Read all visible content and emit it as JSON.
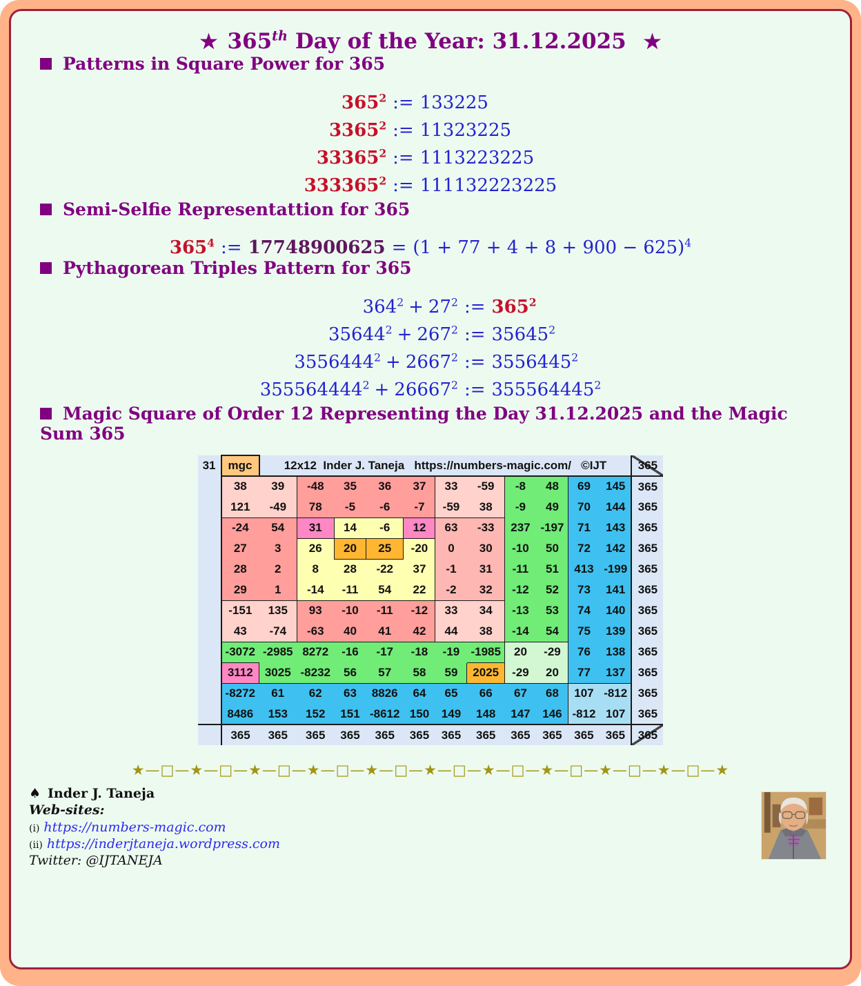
{
  "title": {
    "star_left": "★",
    "number": "365",
    "ordinal": "th",
    "rest": "Day of the Year: 31.12.2025",
    "star_right": "★"
  },
  "symbols": {
    "assign": ":=",
    "plus": "+",
    "equals": "="
  },
  "square_power": {
    "heading": "Patterns in Square Power for 365",
    "equations": [
      {
        "base": "365",
        "exp": "2",
        "result": "133225"
      },
      {
        "base": "3365",
        "exp": "2",
        "result": "11323225"
      },
      {
        "base": "33365",
        "exp": "2",
        "result": "1113223225"
      },
      {
        "base": "333365",
        "exp": "2",
        "result": "111132223225"
      }
    ]
  },
  "semi_selfie": {
    "heading": "Semi-Selfie Representattion for 365",
    "base": "365",
    "exp": "4",
    "value": "17748900625",
    "rhs": "(1 + 77 + 4 + 8 + 900 − 625)",
    "rhs_exp": "4"
  },
  "pythagorean": {
    "heading": "Pythagorean Triples Pattern for 365",
    "equations": [
      {
        "a": "364",
        "b": "27",
        "c": "365",
        "exp": "2"
      },
      {
        "a": "35644",
        "b": "267",
        "c": "35645",
        "exp": "2"
      },
      {
        "a": "3556444",
        "b": "2667",
        "c": "3556445",
        "exp": "2"
      },
      {
        "a": "355564444",
        "b": "26667",
        "c": "355564445",
        "exp": "2"
      }
    ]
  },
  "magic_square": {
    "heading": "Magic Square of Order 12 Representing the Day 31.12.2025 and the Magic Sum 365",
    "corner_label": "31",
    "mgc_label": "mgc",
    "header_text": "12x12  Inder J. Taneja   https://numbers-magic.com/   ©IJT",
    "header_total": "365",
    "palette": {
      "pk": "#ffd2cc",
      "mp": "#ffb7b3",
      "sa": "#ff9e9b",
      "hp": "#ff87c3",
      "ye": "#ffffb2",
      "or": "#ffb732",
      "gr": "#70ec77",
      "pg": "#d3f6d3",
      "bl": "#3ec1f0",
      "lb": "#a8def4",
      "lv": "#dbe7f6"
    },
    "rows": [
      {
        "cells": [
          {
            "v": "38",
            "c": "pk"
          },
          {
            "v": "39",
            "c": "pk"
          },
          {
            "v": "-48",
            "c": "sa"
          },
          {
            "v": "35",
            "c": "sa"
          },
          {
            "v": "36",
            "c": "sa"
          },
          {
            "v": "37",
            "c": "sa"
          },
          {
            "v": "33",
            "c": "pk"
          },
          {
            "v": "-59",
            "c": "pk"
          },
          {
            "v": "-8",
            "c": "gr"
          },
          {
            "v": "48",
            "c": "gr"
          },
          {
            "v": "69",
            "c": "bl"
          },
          {
            "v": "145",
            "c": "bl"
          }
        ]
      },
      {
        "cells": [
          {
            "v": "121",
            "c": "pk"
          },
          {
            "v": "-49",
            "c": "pk"
          },
          {
            "v": "78",
            "c": "sa"
          },
          {
            "v": "-5",
            "c": "sa"
          },
          {
            "v": "-6",
            "c": "sa"
          },
          {
            "v": "-7",
            "c": "sa"
          },
          {
            "v": "-59",
            "c": "pk"
          },
          {
            "v": "38",
            "c": "pk"
          },
          {
            "v": "-9",
            "c": "gr"
          },
          {
            "v": "49",
            "c": "gr"
          },
          {
            "v": "70",
            "c": "bl"
          },
          {
            "v": "144",
            "c": "bl"
          }
        ]
      },
      {
        "cells": [
          {
            "v": "-24",
            "c": "sa"
          },
          {
            "v": "54",
            "c": "sa"
          },
          {
            "v": "31",
            "c": "hp"
          },
          {
            "v": "14",
            "c": "ye"
          },
          {
            "v": "-6",
            "c": "ye"
          },
          {
            "v": "12",
            "c": "hp"
          },
          {
            "v": "63",
            "c": "mp"
          },
          {
            "v": "-33",
            "c": "mp"
          },
          {
            "v": "237",
            "c": "gr"
          },
          {
            "v": "-197",
            "c": "gr"
          },
          {
            "v": "71",
            "c": "bl"
          },
          {
            "v": "143",
            "c": "bl"
          }
        ]
      },
      {
        "cells": [
          {
            "v": "27",
            "c": "sa"
          },
          {
            "v": "3",
            "c": "sa"
          },
          {
            "v": "26",
            "c": "ye"
          },
          {
            "v": "20",
            "c": "or"
          },
          {
            "v": "25",
            "c": "or"
          },
          {
            "v": "-20",
            "c": "ye"
          },
          {
            "v": "0",
            "c": "mp"
          },
          {
            "v": "30",
            "c": "mp"
          },
          {
            "v": "-10",
            "c": "gr"
          },
          {
            "v": "50",
            "c": "gr"
          },
          {
            "v": "72",
            "c": "bl"
          },
          {
            "v": "142",
            "c": "bl"
          }
        ]
      },
      {
        "cells": [
          {
            "v": "28",
            "c": "sa"
          },
          {
            "v": "2",
            "c": "sa"
          },
          {
            "v": "8",
            "c": "ye"
          },
          {
            "v": "28",
            "c": "ye"
          },
          {
            "v": "-22",
            "c": "ye"
          },
          {
            "v": "37",
            "c": "ye"
          },
          {
            "v": "-1",
            "c": "mp"
          },
          {
            "v": "31",
            "c": "mp"
          },
          {
            "v": "-11",
            "c": "gr"
          },
          {
            "v": "51",
            "c": "gr"
          },
          {
            "v": "413",
            "c": "bl"
          },
          {
            "v": "-199",
            "c": "bl"
          }
        ]
      },
      {
        "cells": [
          {
            "v": "29",
            "c": "sa"
          },
          {
            "v": "1",
            "c": "sa"
          },
          {
            "v": "-14",
            "c": "ye"
          },
          {
            "v": "-11",
            "c": "ye"
          },
          {
            "v": "54",
            "c": "ye"
          },
          {
            "v": "22",
            "c": "ye"
          },
          {
            "v": "-2",
            "c": "mp"
          },
          {
            "v": "32",
            "c": "mp"
          },
          {
            "v": "-12",
            "c": "gr"
          },
          {
            "v": "52",
            "c": "gr"
          },
          {
            "v": "73",
            "c": "bl"
          },
          {
            "v": "141",
            "c": "bl"
          }
        ]
      },
      {
        "cells": [
          {
            "v": "-151",
            "c": "pk"
          },
          {
            "v": "135",
            "c": "pk"
          },
          {
            "v": "93",
            "c": "sa"
          },
          {
            "v": "-10",
            "c": "sa"
          },
          {
            "v": "-11",
            "c": "sa"
          },
          {
            "v": "-12",
            "c": "sa"
          },
          {
            "v": "33",
            "c": "pk"
          },
          {
            "v": "34",
            "c": "pk"
          },
          {
            "v": "-13",
            "c": "gr"
          },
          {
            "v": "53",
            "c": "gr"
          },
          {
            "v": "74",
            "c": "bl"
          },
          {
            "v": "140",
            "c": "bl"
          }
        ]
      },
      {
        "cells": [
          {
            "v": "43",
            "c": "pk"
          },
          {
            "v": "-74",
            "c": "pk"
          },
          {
            "v": "-63",
            "c": "sa"
          },
          {
            "v": "40",
            "c": "sa"
          },
          {
            "v": "41",
            "c": "sa"
          },
          {
            "v": "42",
            "c": "sa"
          },
          {
            "v": "44",
            "c": "pk"
          },
          {
            "v": "38",
            "c": "pk"
          },
          {
            "v": "-14",
            "c": "gr"
          },
          {
            "v": "54",
            "c": "gr"
          },
          {
            "v": "75",
            "c": "bl"
          },
          {
            "v": "139",
            "c": "bl"
          }
        ]
      },
      {
        "cells": [
          {
            "v": "-3072",
            "c": "gr"
          },
          {
            "v": "-2985",
            "c": "gr"
          },
          {
            "v": "8272",
            "c": "gr"
          },
          {
            "v": "-16",
            "c": "gr"
          },
          {
            "v": "-17",
            "c": "gr"
          },
          {
            "v": "-18",
            "c": "gr"
          },
          {
            "v": "-19",
            "c": "gr"
          },
          {
            "v": "-1985",
            "c": "gr"
          },
          {
            "v": "20",
            "c": "pg"
          },
          {
            "v": "-29",
            "c": "pg"
          },
          {
            "v": "76",
            "c": "bl"
          },
          {
            "v": "138",
            "c": "bl"
          }
        ]
      },
      {
        "cells": [
          {
            "v": "3112",
            "c": "hp"
          },
          {
            "v": "3025",
            "c": "gr"
          },
          {
            "v": "-8232",
            "c": "gr"
          },
          {
            "v": "56",
            "c": "gr"
          },
          {
            "v": "57",
            "c": "gr"
          },
          {
            "v": "58",
            "c": "gr"
          },
          {
            "v": "59",
            "c": "gr"
          },
          {
            "v": "2025",
            "c": "or"
          },
          {
            "v": "-29",
            "c": "pg"
          },
          {
            "v": "20",
            "c": "pg"
          },
          {
            "v": "77",
            "c": "bl"
          },
          {
            "v": "137",
            "c": "bl"
          }
        ]
      },
      {
        "cells": [
          {
            "v": "-8272",
            "c": "bl"
          },
          {
            "v": "61",
            "c": "bl"
          },
          {
            "v": "62",
            "c": "bl"
          },
          {
            "v": "63",
            "c": "bl"
          },
          {
            "v": "8826",
            "c": "bl"
          },
          {
            "v": "64",
            "c": "bl"
          },
          {
            "v": "65",
            "c": "bl"
          },
          {
            "v": "66",
            "c": "bl"
          },
          {
            "v": "67",
            "c": "bl"
          },
          {
            "v": "68",
            "c": "bl"
          },
          {
            "v": "107",
            "c": "lb"
          },
          {
            "v": "-812",
            "c": "lb"
          }
        ]
      },
      {
        "cells": [
          {
            "v": "8486",
            "c": "bl"
          },
          {
            "v": "153",
            "c": "bl"
          },
          {
            "v": "152",
            "c": "bl"
          },
          {
            "v": "151",
            "c": "bl"
          },
          {
            "v": "-8612",
            "c": "bl"
          },
          {
            "v": "150",
            "c": "bl"
          },
          {
            "v": "149",
            "c": "bl"
          },
          {
            "v": "148",
            "c": "bl"
          },
          {
            "v": "147",
            "c": "bl"
          },
          {
            "v": "146",
            "c": "bl"
          },
          {
            "v": "-812",
            "c": "lb"
          },
          {
            "v": "107",
            "c": "lb"
          }
        ]
      }
    ],
    "row_totals": [
      "365",
      "365",
      "365",
      "365",
      "365",
      "365",
      "365",
      "365",
      "365",
      "365",
      "365",
      "365"
    ],
    "column_totals": [
      "365",
      "365",
      "365",
      "365",
      "365",
      "365",
      "365",
      "365",
      "365",
      "365",
      "365",
      "365"
    ],
    "grand_total": "365"
  },
  "divider": {
    "pattern": "★—□—★—□—★—□—★—□—★—□—★—□—★—□—★—□—★—□—★—□—★"
  },
  "footer": {
    "spade": "♠",
    "author": "Inder J. Taneja",
    "websites_label": "Web-sites:",
    "links": [
      {
        "index": "(i)",
        "url": "https://numbers-magic.com"
      },
      {
        "index": "(ii)",
        "url": "https://inderjtaneja.wordpress.com"
      }
    ],
    "twitter_label": "Twitter:",
    "twitter_handle": "@IJTANEJA"
  }
}
